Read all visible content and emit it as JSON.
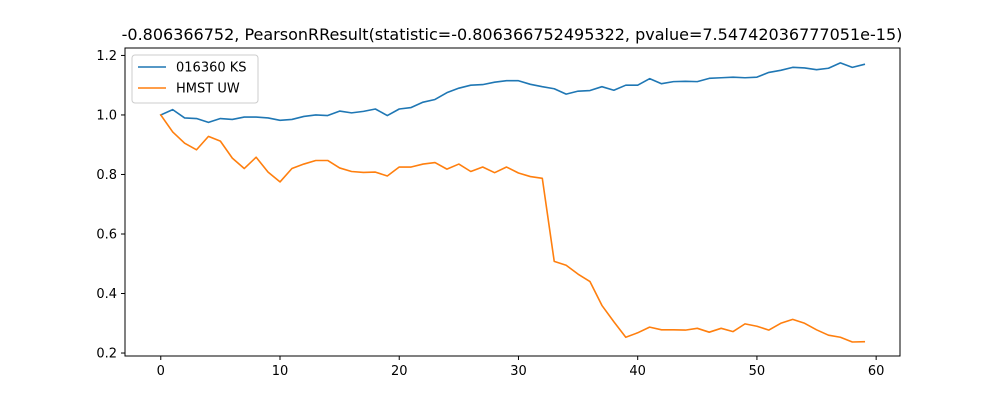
{
  "chart_data": {
    "type": "line",
    "title": "-0.806366752, PearsonRResult(statistic=-0.806366752495322, pvalue=7.54742036777051e-15)",
    "xlabel": "",
    "ylabel": "",
    "xlim": [
      -3,
      62
    ],
    "ylim": [
      0.19,
      1.225
    ],
    "xticks": [
      0,
      10,
      20,
      30,
      40,
      50,
      60
    ],
    "yticks": [
      0.2,
      0.4,
      0.6,
      0.8,
      1.0,
      1.2
    ],
    "xtick_labels": [
      "0",
      "10",
      "20",
      "30",
      "40",
      "50",
      "60"
    ],
    "ytick_labels": [
      "0.2",
      "0.4",
      "0.6",
      "0.8",
      "1.0",
      "1.2"
    ],
    "grid": false,
    "legend_position": "top-left",
    "series": [
      {
        "name": "016360 KS",
        "color": "#1f77b4",
        "x": [
          0,
          1,
          2,
          3,
          4,
          5,
          6,
          7,
          8,
          9,
          10,
          11,
          12,
          13,
          14,
          15,
          16,
          17,
          18,
          19,
          20,
          21,
          22,
          23,
          24,
          25,
          26,
          27,
          28,
          29,
          30,
          31,
          32,
          33,
          34,
          35,
          36,
          37,
          38,
          39,
          40,
          41,
          42,
          43,
          44,
          45,
          46,
          47,
          48,
          49,
          50,
          51,
          52,
          53,
          54,
          55,
          56,
          57,
          58,
          59
        ],
        "values": [
          1.0,
          1.018,
          0.99,
          0.988,
          0.975,
          0.988,
          0.985,
          0.993,
          0.993,
          0.99,
          0.982,
          0.985,
          0.995,
          1.0,
          0.998,
          1.013,
          1.007,
          1.012,
          1.02,
          0.998,
          1.02,
          1.025,
          1.043,
          1.052,
          1.075,
          1.09,
          1.1,
          1.102,
          1.11,
          1.115,
          1.115,
          1.103,
          1.095,
          1.088,
          1.07,
          1.08,
          1.082,
          1.095,
          1.083,
          1.1,
          1.1,
          1.122,
          1.105,
          1.112,
          1.113,
          1.112,
          1.123,
          1.125,
          1.127,
          1.125,
          1.127,
          1.143,
          1.15,
          1.16,
          1.158,
          1.152,
          1.157,
          1.175,
          1.16,
          1.17
        ]
      },
      {
        "name": "HMST UW",
        "color": "#ff7f0e",
        "x": [
          0,
          1,
          2,
          3,
          4,
          5,
          6,
          7,
          8,
          9,
          10,
          11,
          12,
          13,
          14,
          15,
          16,
          17,
          18,
          19,
          20,
          21,
          22,
          23,
          24,
          25,
          26,
          27,
          28,
          29,
          30,
          31,
          32,
          33,
          34,
          35,
          36,
          37,
          38,
          39,
          40,
          41,
          42,
          43,
          44,
          45,
          46,
          47,
          48,
          49,
          50,
          51,
          52,
          53,
          54,
          55,
          56,
          57,
          58,
          59
        ],
        "values": [
          1.0,
          0.943,
          0.905,
          0.883,
          0.928,
          0.912,
          0.855,
          0.82,
          0.858,
          0.808,
          0.775,
          0.82,
          0.835,
          0.847,
          0.847,
          0.822,
          0.81,
          0.807,
          0.808,
          0.795,
          0.825,
          0.825,
          0.835,
          0.84,
          0.818,
          0.835,
          0.81,
          0.825,
          0.806,
          0.825,
          0.805,
          0.793,
          0.787,
          0.508,
          0.495,
          0.465,
          0.44,
          0.36,
          0.305,
          0.253,
          0.268,
          0.287,
          0.278,
          0.278,
          0.277,
          0.283,
          0.27,
          0.283,
          0.272,
          0.298,
          0.29,
          0.277,
          0.3,
          0.313,
          0.3,
          0.278,
          0.26,
          0.253,
          0.237,
          0.238
        ]
      }
    ]
  }
}
